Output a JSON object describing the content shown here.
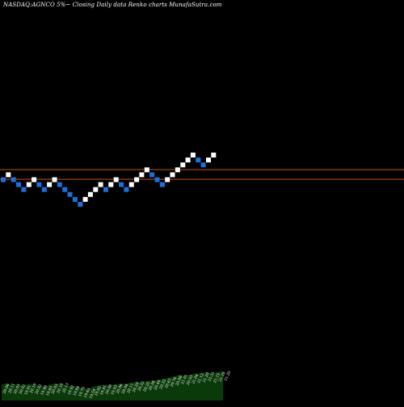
{
  "chart_data": {
    "type": "renko",
    "title": "NASDAQ:AGNCO 5%~  Closing Daily data  Renko  charts MunafaSutra.com",
    "up_color": "#ffffff",
    "down_color": "#1e6fd9",
    "line_color": "#c0501e",
    "footer_color": "#0a3a0a",
    "price_levels": [
      20.4,
      20.0
    ],
    "bricks": [
      {
        "dir": "down",
        "close": 20.1
      },
      {
        "dir": "up",
        "close": 20.4
      },
      {
        "dir": "down",
        "close": 20.1
      },
      {
        "dir": "down",
        "close": 19.8
      },
      {
        "dir": "down",
        "close": 19.5
      },
      {
        "dir": "up",
        "close": 19.8
      },
      {
        "dir": "up",
        "close": 20.1
      },
      {
        "dir": "down",
        "close": 19.8
      },
      {
        "dir": "down",
        "close": 19.5
      },
      {
        "dir": "up",
        "close": 19.8
      },
      {
        "dir": "up",
        "close": 20.1
      },
      {
        "dir": "down",
        "close": 19.8
      },
      {
        "dir": "down",
        "close": 19.5
      },
      {
        "dir": "down",
        "close": 19.2
      },
      {
        "dir": "down",
        "close": 18.9
      },
      {
        "dir": "down",
        "close": 18.6
      },
      {
        "dir": "up",
        "close": 18.9
      },
      {
        "dir": "up",
        "close": 19.2
      },
      {
        "dir": "up",
        "close": 19.5
      },
      {
        "dir": "up",
        "close": 19.8
      },
      {
        "dir": "down",
        "close": 19.5
      },
      {
        "dir": "up",
        "close": 19.8
      },
      {
        "dir": "up",
        "close": 20.1
      },
      {
        "dir": "down",
        "close": 19.8
      },
      {
        "dir": "down",
        "close": 19.5
      },
      {
        "dir": "up",
        "close": 19.8
      },
      {
        "dir": "up",
        "close": 20.1
      },
      {
        "dir": "up",
        "close": 20.4
      },
      {
        "dir": "up",
        "close": 20.7
      },
      {
        "dir": "down",
        "close": 20.4
      },
      {
        "dir": "down",
        "close": 20.1
      },
      {
        "dir": "down",
        "close": 19.8
      },
      {
        "dir": "up",
        "close": 20.1
      },
      {
        "dir": "up",
        "close": 20.4
      },
      {
        "dir": "up",
        "close": 20.7
      },
      {
        "dir": "up",
        "close": 21.0
      },
      {
        "dir": "up",
        "close": 21.3
      },
      {
        "dir": "up",
        "close": 21.6
      },
      {
        "dir": "down",
        "close": 21.3
      },
      {
        "dir": "down",
        "close": 21.0
      },
      {
        "dir": "up",
        "close": 21.3
      },
      {
        "dir": "up",
        "close": 21.6
      }
    ],
    "footer_labels": [
      "20.06",
      "20.11",
      "20.03",
      "20.02",
      "19.91",
      "20.10",
      "20.02",
      "19.90",
      "19.83",
      "20.03",
      "20.10",
      "20.13",
      "19.92",
      "19.84",
      "19.75",
      "19.63",
      "19.54",
      "19.82",
      "19.91",
      "20.00",
      "19.93",
      "20.06",
      "20.04",
      "20.11",
      "20.20",
      "20.32",
      "20.25",
      "20.38",
      "20.44",
      "20.52",
      "20.61",
      "20.74",
      "20.88",
      "21.01",
      "20.93",
      "21.04",
      "21.12",
      "21.20",
      "21.31",
      "21.15",
      "21.28",
      "21.35"
    ]
  }
}
